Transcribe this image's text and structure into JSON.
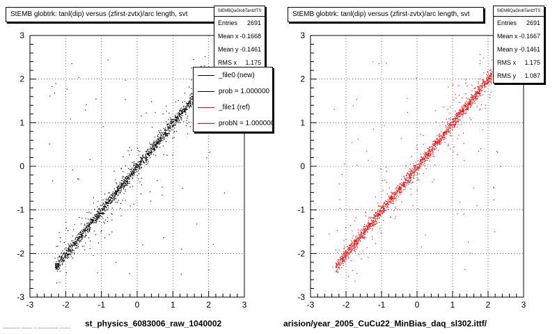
{
  "chart_data": [
    {
      "type": "scatter",
      "title": "StEMB globtrk: tanl(dip) versus (zfirst-zvtx)/arc length, svt",
      "xlabel": "st_physics_6083006_raw_1040002",
      "ylabel": "",
      "xlim": [
        -3,
        3
      ],
      "ylim": [
        -3,
        3
      ],
      "xticks": [
        "-3",
        "-2",
        "-1",
        "0",
        "1",
        "2",
        "3"
      ],
      "yticks": [
        "-3",
        "-2",
        "-1",
        "0",
        "1",
        "2",
        "3"
      ],
      "grid": true,
      "marker_color": "#000000",
      "trend": {
        "slope": 1.0,
        "intercept": 0.0,
        "x_range": [
          -2.3,
          2.1
        ]
      },
      "stats": {
        "header": "StEMBQaGlobTanlzfTS",
        "rows": [
          {
            "label": "Entries",
            "value": "2691"
          },
          {
            "label": "Mean x",
            "value": "-0.1668"
          },
          {
            "label": "Mean y",
            "value": "-0.1461"
          },
          {
            "label": "RMS x",
            "value": "1.175"
          }
        ]
      },
      "legend": {
        "placement": "top-right",
        "entries": [
          {
            "label": "_file0 (new)",
            "color": "#000000"
          },
          {
            "label": "prob = 1.000000",
            "color": "#000000"
          },
          {
            "label": "_file1 (ref)",
            "color": "#ff0000"
          },
          {
            "label": "probN = 1.000000",
            "color": "#ff0000"
          }
        ]
      }
    },
    {
      "type": "scatter",
      "title": "StEMB globtrk: tanl(dip) versus (zfirst-zvtx)/arc length, svt",
      "xlabel": "arision/year_2005_CuCu22_MinBias_daq_sl302.ittf/",
      "ylabel": "",
      "xlim": [
        -3,
        3
      ],
      "ylim": [
        -3,
        3
      ],
      "xticks": [
        "-3",
        "-2",
        "-1",
        "0",
        "1",
        "2",
        "3"
      ],
      "yticks": [
        "-3",
        "-2",
        "-1",
        "0",
        "1",
        "2",
        "3"
      ],
      "grid": true,
      "marker_color": "#ff0000",
      "trend": {
        "slope": 1.0,
        "intercept": 0.0,
        "x_range": [
          -2.3,
          2.1
        ]
      },
      "stats": {
        "header": "StEMBQaGlobTanlzfTS",
        "rows": [
          {
            "label": "Entries",
            "value": "2691"
          },
          {
            "label": "Mean x",
            "value": "-0.1667"
          },
          {
            "label": "Mean y",
            "value": "-0.1461"
          },
          {
            "label": "RMS x",
            "value": "1.175"
          },
          {
            "label": "RMS y",
            "value": "1.087"
          }
        ]
      }
    }
  ],
  "footer": "~~~~~~ ~~~~ ~ ~~~~~~~ ~~~~"
}
